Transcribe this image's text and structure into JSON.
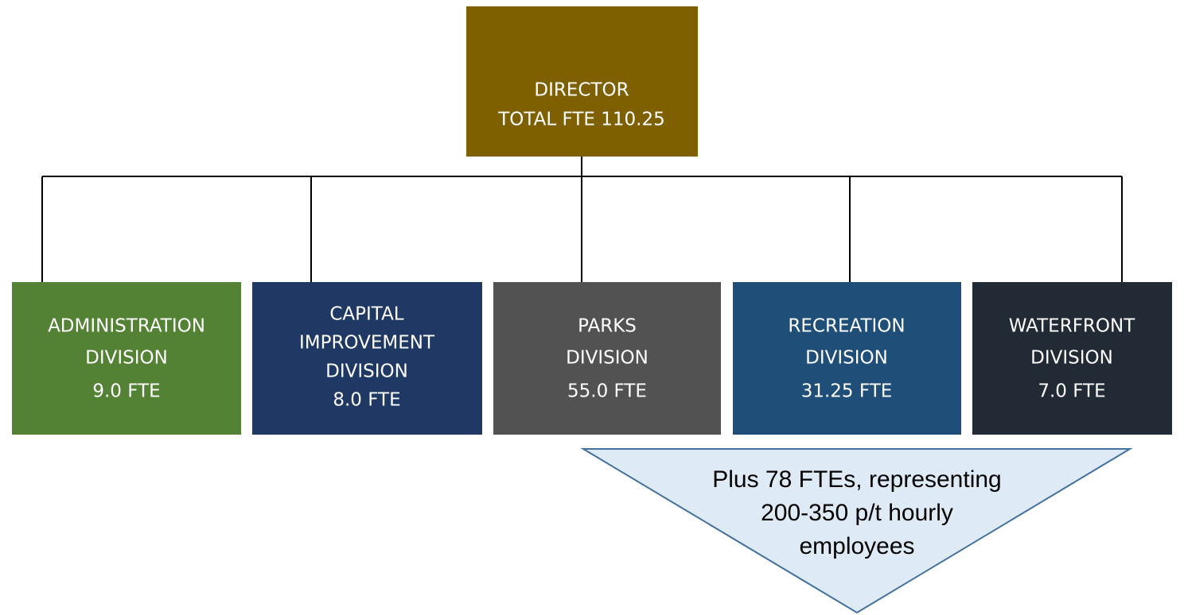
{
  "director": {
    "lines": [
      "DIRECTOR",
      "TOTAL FTE 110.25"
    ]
  },
  "divisions": [
    {
      "lines": [
        "ADMINISTRATION",
        "DIVISION",
        "9.0 FTE"
      ]
    },
    {
      "lines": [
        "CAPITAL",
        "IMPROVEMENT",
        "DIVISION",
        "8.0 FTE"
      ]
    },
    {
      "lines": [
        "PARKS",
        "DIVISION",
        "55.0 FTE"
      ]
    },
    {
      "lines": [
        "RECREATION",
        "DIVISION",
        "31.25 FTE"
      ]
    },
    {
      "lines": [
        "WATERFRONT",
        "DIVISION",
        "7.0 FTE"
      ]
    }
  ],
  "callout": {
    "lines": [
      "Plus 78 FTEs, representing",
      "200-350 p/t hourly",
      "employees"
    ]
  }
}
